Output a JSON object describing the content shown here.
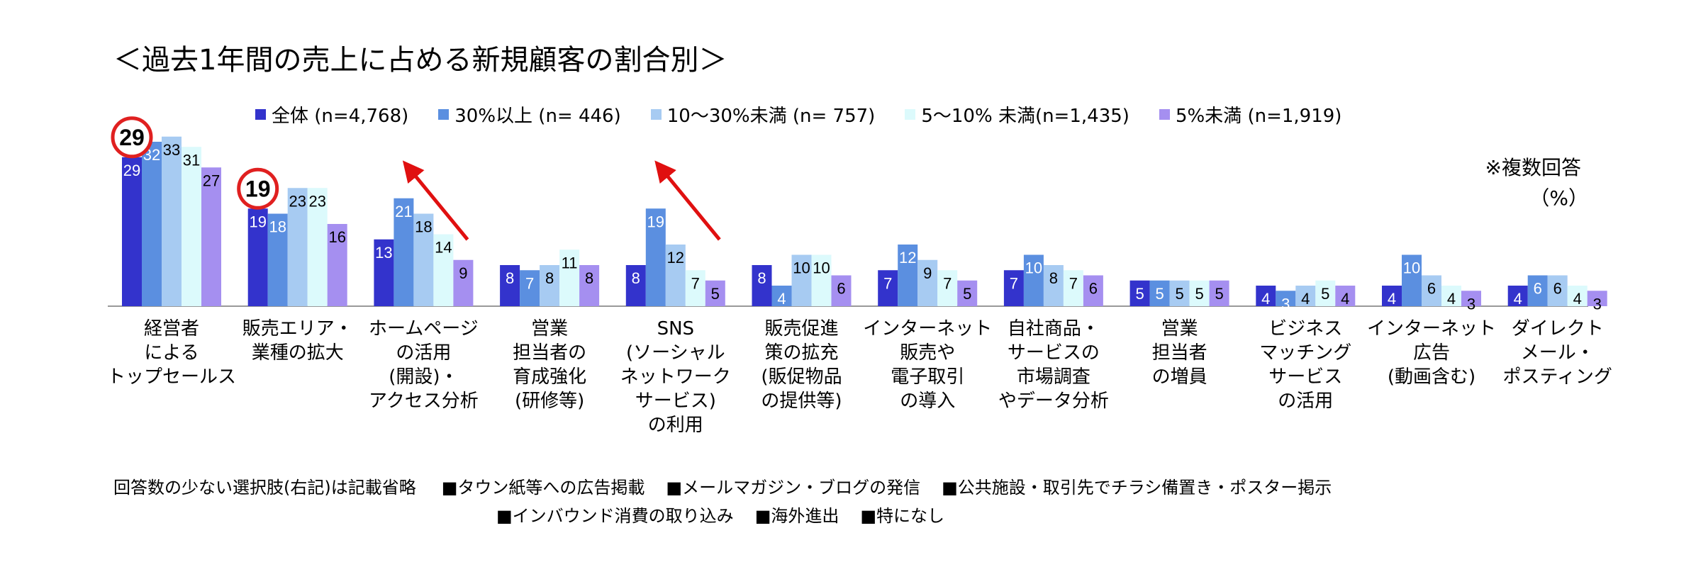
{
  "title": "＜過去1年間の売上に占める新規顧客の割合別＞",
  "note": "※複数回答",
  "unit": "（%）",
  "legend": [
    {
      "label": "全体 (n=4,768)",
      "color": "#3333cc"
    },
    {
      "label": "30%以上 (n=  446)",
      "color": "#5b8fe0"
    },
    {
      "label": "10～30%未満 (n=  757)",
      "color": "#a7cbf2"
    },
    {
      "label": "5～10% 未満(n=1,435)",
      "color": "#dcfafc"
    },
    {
      "label": "5%未満 (n=1,919)",
      "color": "#a58ff0"
    }
  ],
  "chart_data": {
    "type": "bar",
    "title": "＜過去1年間の売上に占める新規顧客の割合別＞",
    "ylabel": "（%）",
    "ylim": [
      0,
      35
    ],
    "categories": [
      [
        "経営者",
        "による",
        "トップセールス"
      ],
      [
        "販売エリア・",
        "業種の拡大"
      ],
      [
        "ホームページ",
        "の活用",
        "(開設)・",
        "アクセス分析"
      ],
      [
        "営業",
        "担当者の",
        "育成強化",
        "(研修等)"
      ],
      [
        "SNS",
        "(ソーシャル",
        "ネットワーク",
        "サービス)",
        "の利用"
      ],
      [
        "販売促進",
        "策の拡充",
        "(販促物品",
        "の提供等)"
      ],
      [
        "インターネット",
        "販売や",
        "電子取引",
        "の導入"
      ],
      [
        "自社商品・",
        "サービスの",
        "市場調査",
        "やデータ分析"
      ],
      [
        "営業",
        "担当者",
        "の増員"
      ],
      [
        "ビジネス",
        "マッチング",
        "サービス",
        "の活用"
      ],
      [
        "インターネット",
        "広告",
        "(動画含む)"
      ],
      [
        "ダイレクト",
        "メール・",
        "ポスティング"
      ]
    ],
    "series": [
      {
        "name": "全体 (n=4,768)",
        "color": "#3333cc",
        "label_color": "#ffffff",
        "values": [
          29,
          19,
          13,
          8,
          8,
          8,
          7,
          7,
          5,
          4,
          4,
          4
        ]
      },
      {
        "name": "30%以上 (n=  446)",
        "color": "#5b8fe0",
        "label_color": "#ffffff",
        "values": [
          32,
          18,
          21,
          7,
          19,
          4,
          12,
          10,
          5,
          3,
          10,
          6
        ]
      },
      {
        "name": "10～30%未満 (n=  757)",
        "color": "#a7cbf2",
        "label_color": "#000000",
        "values": [
          33,
          23,
          18,
          8,
          12,
          10,
          9,
          8,
          5,
          4,
          6,
          6
        ]
      },
      {
        "name": "5～10% 未満(n=1,435)",
        "color": "#dcfafc",
        "label_color": "#000000",
        "values": [
          31,
          23,
          14,
          11,
          7,
          10,
          7,
          7,
          5,
          5,
          4,
          4
        ]
      },
      {
        "name": "5%未満 (n=1,919)",
        "color": "#a58ff0",
        "label_color": "#000000",
        "values": [
          27,
          16,
          9,
          8,
          5,
          6,
          5,
          6,
          5,
          4,
          3,
          3
        ]
      }
    ],
    "highlights": [
      {
        "category_index": 0,
        "series_index": 0,
        "value": 29
      },
      {
        "category_index": 1,
        "series_index": 0,
        "value": 19
      }
    ],
    "arrows": [
      {
        "category_index": 2,
        "direction": "up-left"
      },
      {
        "category_index": 4,
        "direction": "up-left"
      }
    ]
  },
  "footer": {
    "label": "回答数の少ない選択肢(右記)は記載省略",
    "items_row1": [
      "■タウン紙等への広告掲載",
      "■メールマガジン・ブログの発信",
      "■公共施設・取引先でチラシ備置き・ポスター掲示"
    ],
    "items_row2": [
      "■インバウンド消費の取り込み",
      "■海外進出",
      "■特になし"
    ]
  }
}
